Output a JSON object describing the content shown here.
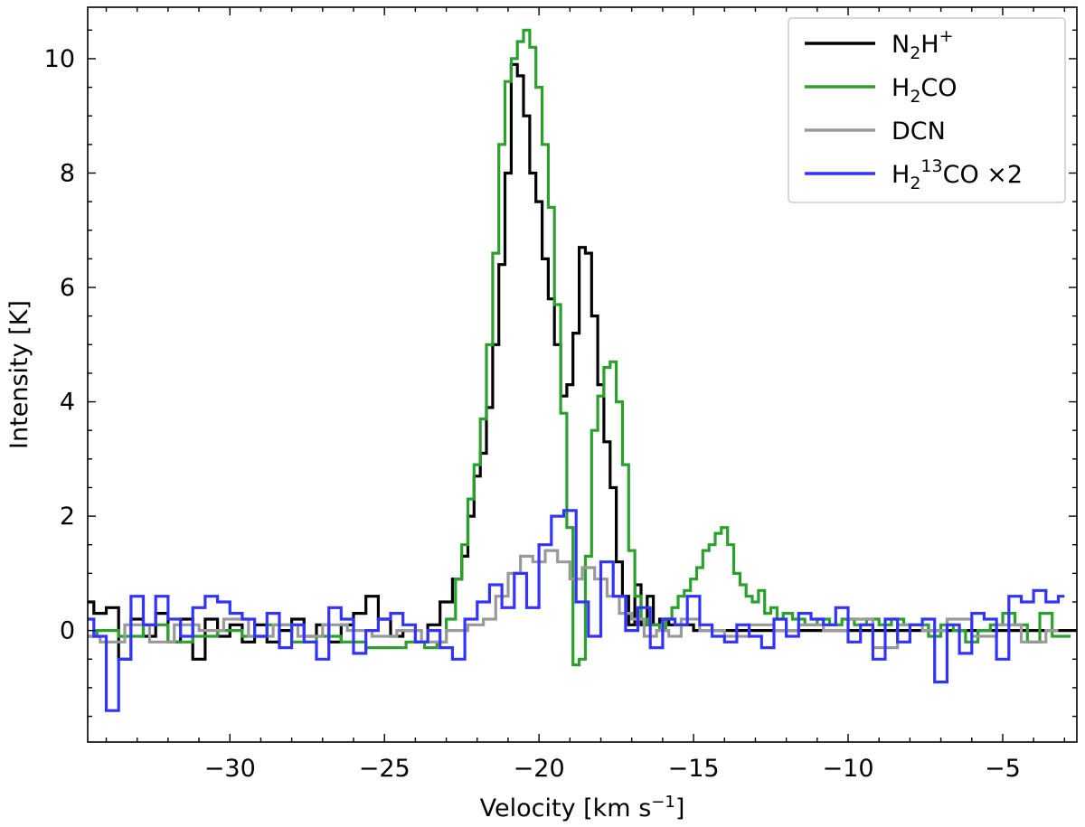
{
  "chart_data": {
    "type": "line",
    "step": true,
    "xlabel_main": "Velocity [km s",
    "xlabel_sup": "−1",
    "xlabel_end": "]",
    "ylabel": "Intensity [K]",
    "xlim": [
      -34.6,
      -2.6
    ],
    "ylim": [
      -1.95,
      10.9
    ],
    "xticks": [
      -30,
      -25,
      -20,
      -15,
      -10,
      -5
    ],
    "xtick_labels": [
      "−30",
      "−25",
      "−20",
      "−15",
      "−10",
      "−5"
    ],
    "yticks": [
      0,
      2,
      4,
      6,
      8,
      10
    ],
    "ytick_labels": [
      "0",
      "2",
      "4",
      "6",
      "8",
      "10"
    ],
    "grid": false,
    "legend_position": "top-right",
    "legend": [
      {
        "key": "n2h",
        "parts": [
          [
            "N",
            ""
          ],
          [
            "2",
            "sub"
          ],
          [
            "H",
            ""
          ],
          [
            "+",
            "sup"
          ]
        ]
      },
      {
        "key": "h2co",
        "parts": [
          [
            "H",
            ""
          ],
          [
            "2",
            "sub"
          ],
          [
            "CO",
            ""
          ]
        ]
      },
      {
        "key": "dcn",
        "parts": [
          [
            "DCN",
            ""
          ]
        ]
      },
      {
        "key": "h213co",
        "parts": [
          [
            "H",
            ""
          ],
          [
            "2",
            "sub"
          ],
          [
            "13",
            "sup"
          ],
          [
            "CO  ×2",
            ""
          ]
        ]
      }
    ],
    "series": [
      {
        "key": "n2h",
        "color": "#000000",
        "x": [
          -34.6,
          -34.2,
          -33.8,
          -33.4,
          -33.0,
          -32.6,
          -32.2,
          -31.8,
          -31.4,
          -31.0,
          -30.6,
          -30.2,
          -29.8,
          -29.4,
          -29.0,
          -28.6,
          -28.2,
          -27.8,
          -27.4,
          -27.0,
          -26.6,
          -26.2,
          -25.8,
          -25.4,
          -25.0,
          -24.6,
          -24.2,
          -23.8,
          -23.4,
          -23.0,
          -22.6,
          -22.4,
          -22.2,
          -22.0,
          -21.8,
          -21.6,
          -21.4,
          -21.2,
          -21.0,
          -20.8,
          -20.6,
          -20.4,
          -20.2,
          -20.0,
          -19.8,
          -19.6,
          -19.4,
          -19.2,
          -19.0,
          -18.8,
          -18.6,
          -18.4,
          -18.2,
          -18.0,
          -17.8,
          -17.6,
          -17.4,
          -17.2,
          -17.0,
          -16.8,
          -16.6,
          -16.4,
          -16.2,
          -16.0,
          -15.6,
          -15.2,
          -14.8,
          -14.4,
          -14.0,
          -12.0,
          -10.0,
          -8.0,
          -6.0,
          -4.0,
          -2.6
        ],
        "y": [
          0.5,
          0.3,
          0.4,
          -0.5,
          0.2,
          -0.1,
          0.3,
          -0.2,
          0.2,
          -0.5,
          0.2,
          -0.1,
          0.1,
          -0.2,
          0.1,
          -0.2,
          0.0,
          0.2,
          -0.1,
          0.1,
          -0.2,
          0.1,
          0.3,
          0.6,
          0.2,
          -0.1,
          0.0,
          -0.2,
          0.1,
          0.5,
          0.9,
          1.3,
          2.0,
          2.7,
          3.1,
          3.9,
          5.0,
          6.4,
          8.0,
          9.9,
          9.7,
          9.0,
          8.0,
          7.5,
          6.5,
          5.8,
          5.0,
          4.1,
          4.3,
          5.2,
          6.7,
          6.6,
          5.5,
          4.3,
          3.3,
          2.5,
          1.2,
          0.6,
          0.1,
          0.8,
          0.1,
          0.6,
          0.1,
          0.2,
          0.1,
          0.1,
          0.0,
          0.0,
          0.0,
          0.0,
          0.0,
          0.0,
          0.0,
          0.0,
          0.0
        ]
      },
      {
        "key": "h2co",
        "color": "#2ca02c",
        "x": [
          -34.6,
          -34.0,
          -33.2,
          -32.4,
          -31.6,
          -30.8,
          -30.0,
          -29.2,
          -28.4,
          -27.6,
          -26.8,
          -26.0,
          -25.2,
          -24.6,
          -24.0,
          -23.4,
          -23.2,
          -22.8,
          -22.6,
          -22.4,
          -22.2,
          -22.0,
          -21.8,
          -21.6,
          -21.4,
          -21.2,
          -21.0,
          -20.8,
          -20.6,
          -20.4,
          -20.2,
          -20.0,
          -19.8,
          -19.6,
          -19.4,
          -19.2,
          -19.0,
          -18.8,
          -18.6,
          -18.4,
          -18.2,
          -18.0,
          -17.8,
          -17.6,
          -17.4,
          -17.2,
          -17.0,
          -16.8,
          -16.6,
          -16.4,
          -16.2,
          -16.0,
          -15.8,
          -15.6,
          -15.4,
          -15.2,
          -15.0,
          -14.8,
          -14.6,
          -14.4,
          -14.2,
          -14.0,
          -13.8,
          -13.6,
          -13.4,
          -13.2,
          -13.0,
          -12.8,
          -12.6,
          -12.4,
          -12.2,
          -12.0,
          -11.6,
          -11.2,
          -10.8,
          -10.4,
          -10.0,
          -9.6,
          -9.2,
          -8.8,
          -8.4,
          -8.0,
          -7.6,
          -7.2,
          -6.8,
          -6.4,
          -6.0,
          -5.6,
          -5.2,
          -4.8,
          -4.4,
          -4.0,
          -3.6,
          -3.2,
          -2.8
        ],
        "y": [
          -0.1,
          0.0,
          -0.1,
          0.1,
          -0.2,
          -0.1,
          0.0,
          -0.1,
          0.1,
          -0.2,
          -0.1,
          -0.2,
          -0.3,
          -0.3,
          -0.2,
          -0.3,
          -0.2,
          0.2,
          0.9,
          1.5,
          2.3,
          2.9,
          3.7,
          5.0,
          6.6,
          8.5,
          9.6,
          10.0,
          10.3,
          10.5,
          10.2,
          9.5,
          8.5,
          7.4,
          5.7,
          3.8,
          1.8,
          -0.6,
          -0.5,
          1.3,
          3.5,
          4.1,
          4.6,
          4.7,
          4.0,
          2.9,
          1.4,
          0.6,
          0.2,
          0.1,
          0.1,
          0.0,
          0.2,
          0.4,
          0.6,
          0.7,
          0.9,
          1.1,
          1.4,
          1.5,
          1.7,
          1.8,
          1.5,
          1.0,
          0.8,
          0.6,
          0.5,
          0.7,
          0.3,
          0.4,
          0.2,
          0.3,
          0.2,
          0.1,
          0.2,
          0.1,
          0.2,
          0.1,
          0.2,
          0.1,
          0.2,
          0.1,
          0.1,
          -0.1,
          0.1,
          0.0,
          -0.2,
          0.0,
          0.1,
          0.3,
          0.1,
          -0.2,
          0.3,
          -0.1,
          -0.1
        ]
      },
      {
        "key": "dcn",
        "color": "#999999",
        "x": [
          -34.6,
          -33.8,
          -33.0,
          -32.2,
          -31.4,
          -30.6,
          -29.8,
          -29.0,
          -28.2,
          -27.4,
          -26.6,
          -25.8,
          -25.0,
          -24.2,
          -23.4,
          -22.6,
          -22.0,
          -21.6,
          -21.2,
          -20.8,
          -20.4,
          -20.0,
          -19.6,
          -19.2,
          -18.8,
          -18.4,
          -18.0,
          -17.6,
          -17.2,
          -16.8,
          -16.4,
          -16.0,
          -15.6,
          -15.2,
          -14.4,
          -13.6,
          -12.8,
          -12.0,
          -11.2,
          -10.4,
          -9.6,
          -8.8,
          -8.0,
          -7.2,
          -6.4,
          -5.6,
          -4.8,
          -4.0,
          -3.2
        ],
        "y": [
          -0.1,
          -0.2,
          0.1,
          -0.2,
          0.1,
          0.0,
          0.2,
          -0.1,
          0.1,
          -0.1,
          0.1,
          0.0,
          -0.1,
          0.0,
          -0.2,
          0.0,
          0.1,
          0.2,
          0.6,
          1.0,
          1.3,
          1.2,
          1.4,
          1.2,
          0.9,
          1.1,
          0.9,
          0.6,
          0.3,
          0.2,
          -0.1,
          0.0,
          -0.1,
          0.2,
          0.0,
          -0.1,
          0.1,
          0.0,
          0.1,
          0.0,
          0.2,
          -0.3,
          0.1,
          0.0,
          0.2,
          -0.1,
          0.1,
          -0.2,
          0.0
        ]
      },
      {
        "key": "h213co",
        "color": "#3333ff",
        "x": [
          -34.6,
          -34.2,
          -33.8,
          -33.4,
          -33.0,
          -32.6,
          -32.2,
          -31.8,
          -31.4,
          -31.0,
          -30.6,
          -30.2,
          -29.8,
          -29.4,
          -29.0,
          -28.6,
          -28.2,
          -27.8,
          -27.4,
          -27.0,
          -26.6,
          -26.2,
          -25.8,
          -25.4,
          -25.0,
          -24.6,
          -24.2,
          -23.8,
          -23.4,
          -23.0,
          -22.6,
          -22.2,
          -21.8,
          -21.4,
          -21.0,
          -20.6,
          -20.2,
          -19.8,
          -19.4,
          -19.0,
          -18.6,
          -18.2,
          -17.8,
          -17.4,
          -17.0,
          -16.6,
          -16.2,
          -15.8,
          -15.4,
          -15.0,
          -14.6,
          -14.2,
          -13.8,
          -13.4,
          -13.0,
          -12.6,
          -12.2,
          -11.8,
          -11.4,
          -11.0,
          -10.6,
          -10.2,
          -9.8,
          -9.4,
          -9.0,
          -8.6,
          -8.2,
          -7.8,
          -7.4,
          -7.0,
          -6.6,
          -6.2,
          -5.8,
          -5.4,
          -5.0,
          -4.6,
          -4.2,
          -3.8,
          -3.4,
          -3.0
        ],
        "y": [
          0.2,
          -0.1,
          -1.4,
          -0.5,
          0.6,
          0.1,
          0.6,
          0.2,
          -0.1,
          0.4,
          0.6,
          0.5,
          0.3,
          0.2,
          -0.1,
          0.3,
          -0.3,
          0.1,
          -0.2,
          -0.5,
          0.4,
          0.2,
          -0.4,
          0.0,
          0.2,
          0.3,
          0.1,
          -0.2,
          0.0,
          -0.3,
          -0.5,
          0.2,
          0.5,
          0.8,
          0.4,
          1.0,
          0.4,
          1.5,
          2.0,
          2.1,
          0.5,
          -0.1,
          1.2,
          0.6,
          0.0,
          0.4,
          -0.3,
          0.2,
          0.1,
          0.6,
          0.1,
          -0.1,
          -0.2,
          0.1,
          -0.1,
          -0.3,
          0.2,
          -0.1,
          0.3,
          0.2,
          0.1,
          0.4,
          -0.2,
          0.1,
          -0.5,
          0.2,
          -0.2,
          0.1,
          0.2,
          -0.9,
          0.1,
          -0.4,
          0.3,
          0.2,
          -0.5,
          0.6,
          0.5,
          0.7,
          0.5,
          0.6
        ]
      }
    ]
  }
}
